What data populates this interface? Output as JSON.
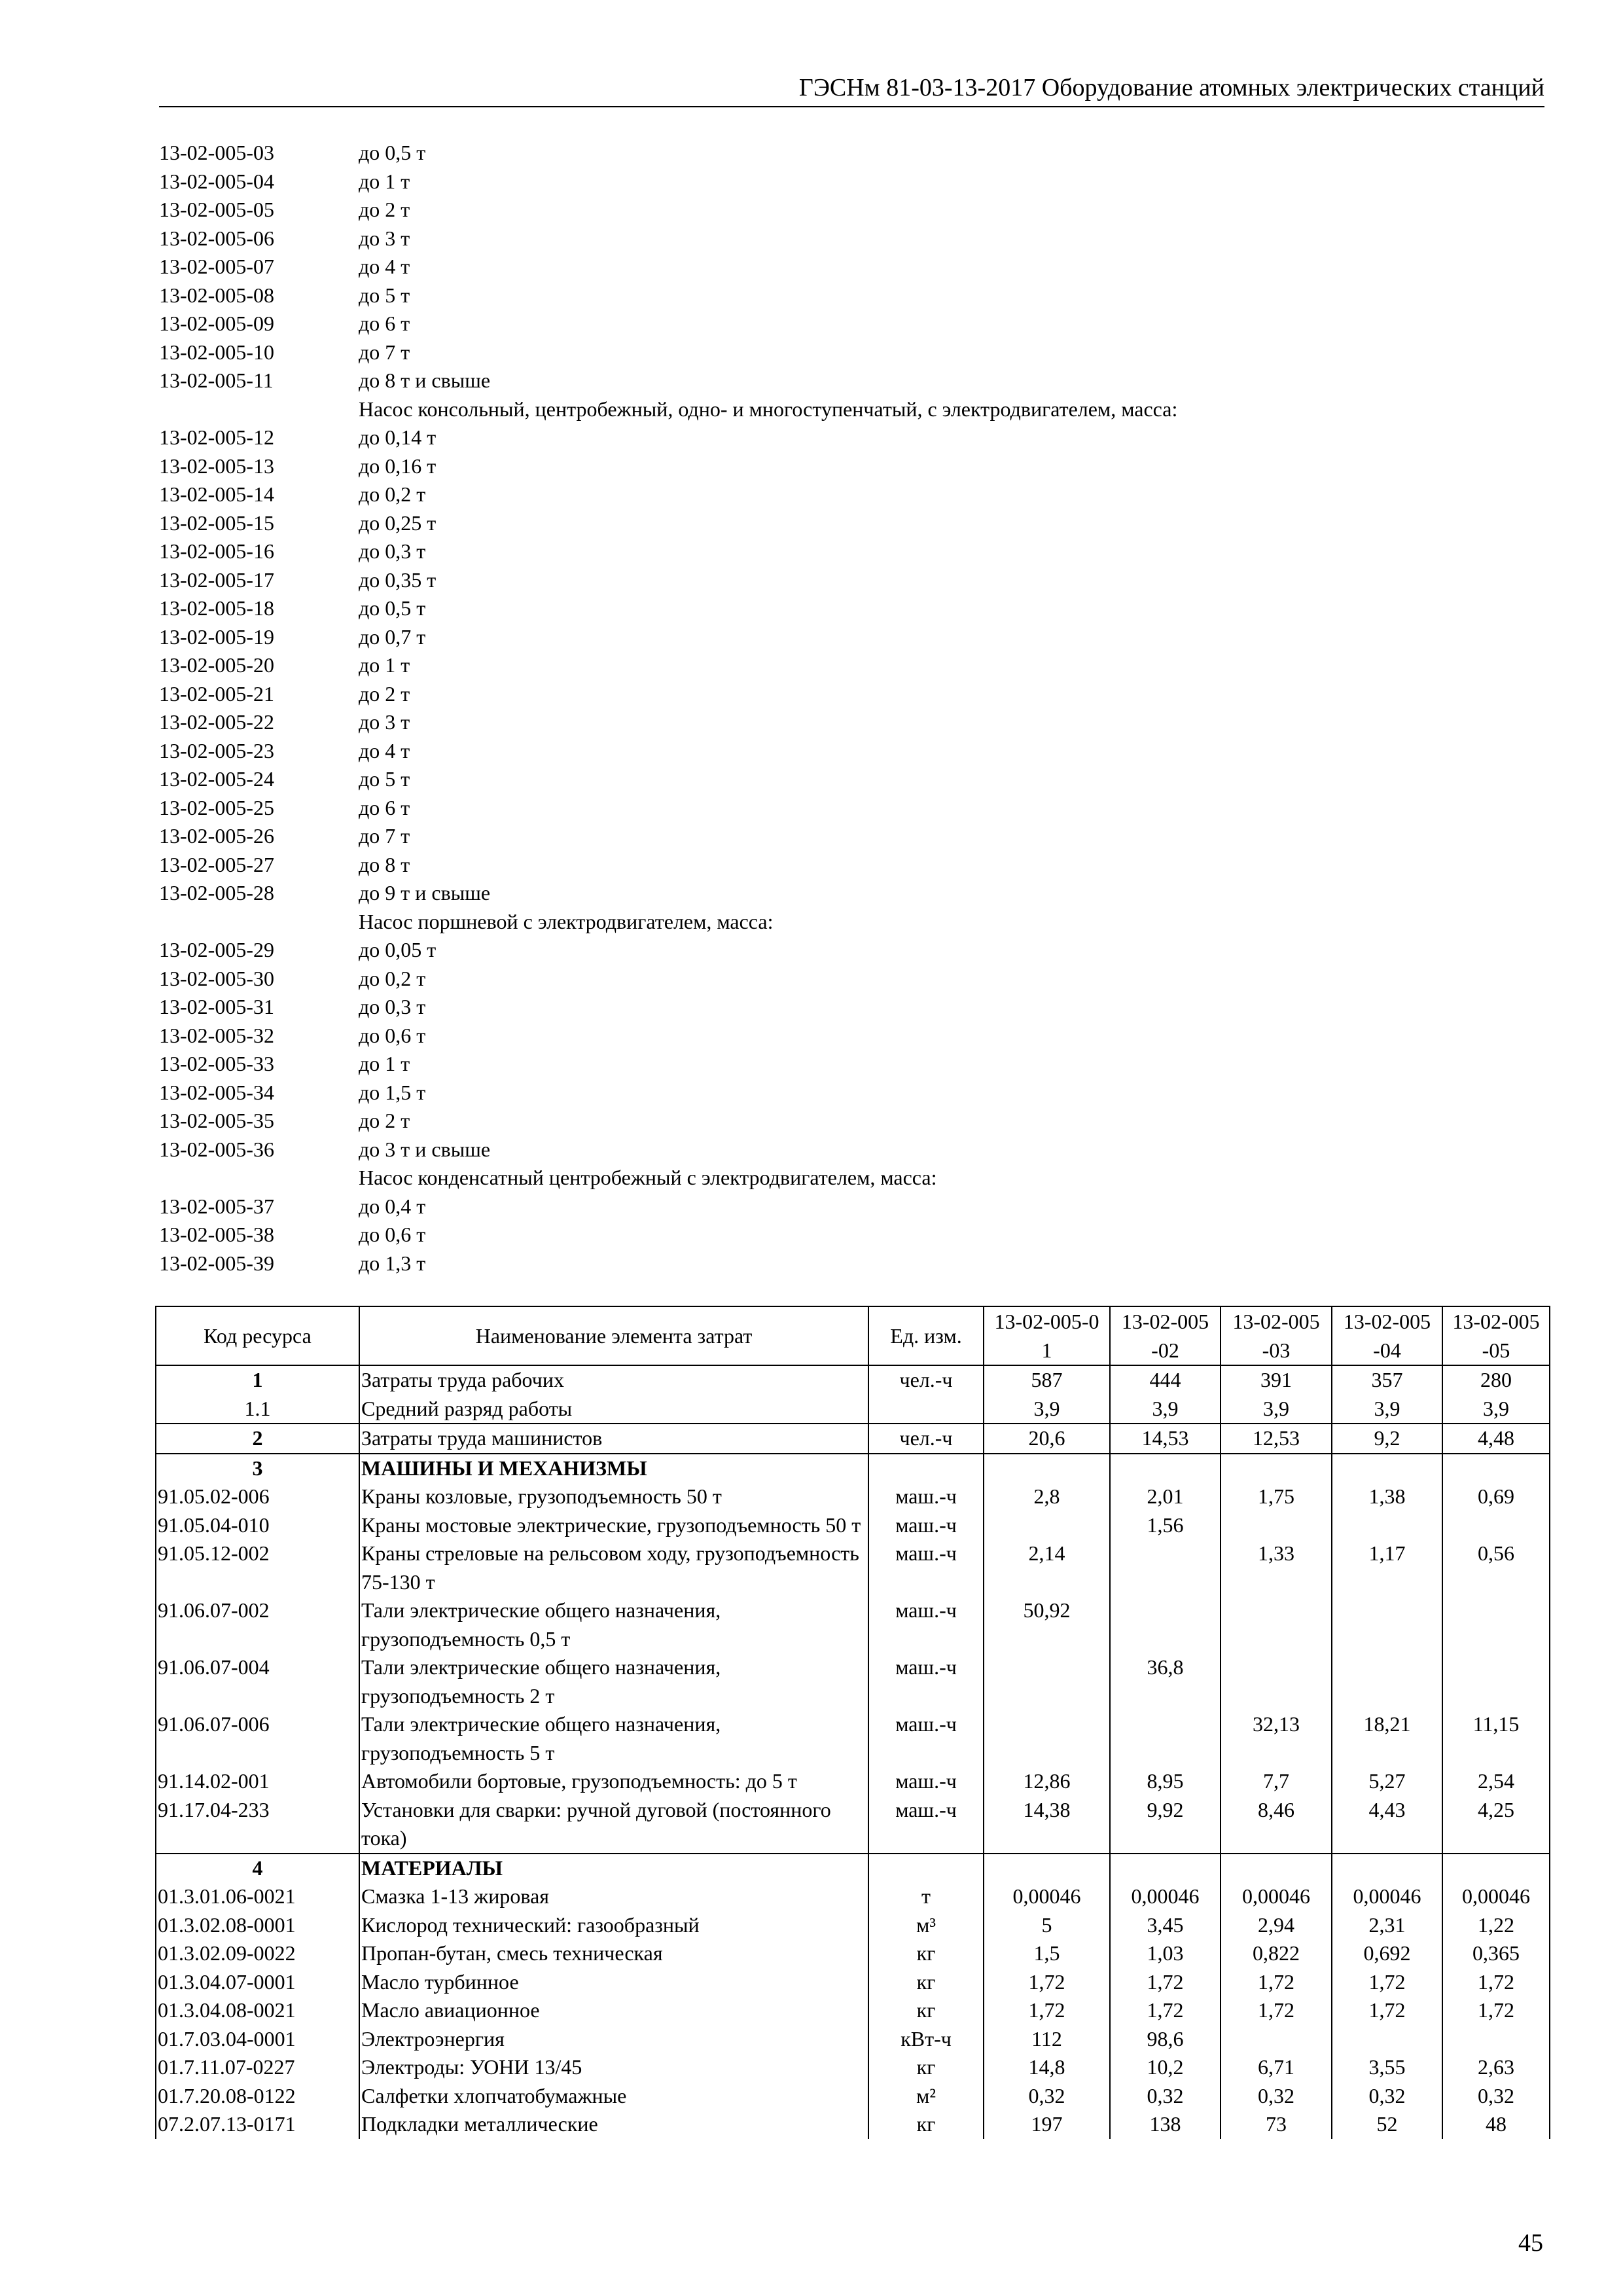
{
  "header": {
    "title": "ГЭСНм 81-03-13-2017 Оборудование атомных электрических станций"
  },
  "list": [
    {
      "code": "13-02-005-03",
      "text": "до 0,5 т"
    },
    {
      "code": "13-02-005-04",
      "text": "до 1 т"
    },
    {
      "code": "13-02-005-05",
      "text": "до 2 т"
    },
    {
      "code": "13-02-005-06",
      "text": "до 3 т"
    },
    {
      "code": "13-02-005-07",
      "text": "до 4 т"
    },
    {
      "code": "13-02-005-08",
      "text": "до 5 т"
    },
    {
      "code": "13-02-005-09",
      "text": "до 6 т"
    },
    {
      "code": "13-02-005-10",
      "text": "до 7 т"
    },
    {
      "code": "13-02-005-11",
      "text": "до 8 т и свыше"
    },
    {
      "code": "",
      "text": "Насос консольный, центробежный, одно- и многоступенчатый, с электродвигателем, масса:"
    },
    {
      "code": "13-02-005-12",
      "text": "до 0,14 т"
    },
    {
      "code": "13-02-005-13",
      "text": "до 0,16 т"
    },
    {
      "code": "13-02-005-14",
      "text": "до 0,2 т"
    },
    {
      "code": "13-02-005-15",
      "text": "до 0,25 т"
    },
    {
      "code": "13-02-005-16",
      "text": "до 0,3 т"
    },
    {
      "code": "13-02-005-17",
      "text": "до 0,35 т"
    },
    {
      "code": "13-02-005-18",
      "text": "до 0,5 т"
    },
    {
      "code": "13-02-005-19",
      "text": "до 0,7 т"
    },
    {
      "code": "13-02-005-20",
      "text": "до 1 т"
    },
    {
      "code": "13-02-005-21",
      "text": "до 2 т"
    },
    {
      "code": "13-02-005-22",
      "text": "до 3 т"
    },
    {
      "code": "13-02-005-23",
      "text": "до 4 т"
    },
    {
      "code": "13-02-005-24",
      "text": "до 5 т"
    },
    {
      "code": "13-02-005-25",
      "text": "до 6 т"
    },
    {
      "code": "13-02-005-26",
      "text": "до 7 т"
    },
    {
      "code": "13-02-005-27",
      "text": "до 8 т"
    },
    {
      "code": "13-02-005-28",
      "text": "до 9 т и свыше"
    },
    {
      "code": "",
      "text": "Насос поршневой с электродвигателем, масса:"
    },
    {
      "code": "13-02-005-29",
      "text": "до 0,05 т"
    },
    {
      "code": "13-02-005-30",
      "text": "до 0,2 т"
    },
    {
      "code": "13-02-005-31",
      "text": "до 0,3 т"
    },
    {
      "code": "13-02-005-32",
      "text": "до 0,6 т"
    },
    {
      "code": "13-02-005-33",
      "text": "до 1 т"
    },
    {
      "code": "13-02-005-34",
      "text": "до 1,5 т"
    },
    {
      "code": "13-02-005-35",
      "text": "до 2 т"
    },
    {
      "code": "13-02-005-36",
      "text": "до 3 т и свыше"
    },
    {
      "code": "",
      "text": "Насос конденсатный центробежный с электродвигателем, масса:"
    },
    {
      "code": "13-02-005-37",
      "text": "до 0,4 т"
    },
    {
      "code": "13-02-005-38",
      "text": "до 0,6 т"
    },
    {
      "code": "13-02-005-39",
      "text": "до 1,3 т"
    }
  ],
  "table": {
    "headers": [
      "Код ресурса",
      "Наименование элемента затрат",
      "Ед. изм.",
      "13-02-005-01",
      "13-02-005-02",
      "13-02-005-03",
      "13-02-005-04",
      "13-02-005-05"
    ],
    "groups": [
      [
        {
          "code": "1",
          "name": "Затраты труда рабочих",
          "unit": "чел.-ч",
          "v": [
            "587",
            "444",
            "391",
            "357",
            "280"
          ],
          "center": true,
          "boldCode": true
        },
        {
          "code": "1.1",
          "name": "Средний разряд работы",
          "unit": "",
          "v": [
            "3,9",
            "3,9",
            "3,9",
            "3,9",
            "3,9"
          ],
          "center": true
        }
      ],
      [
        {
          "code": "2",
          "name": "Затраты труда машинистов",
          "unit": "чел.-ч",
          "v": [
            "20,6",
            "14,53",
            "12,53",
            "9,2",
            "4,48"
          ],
          "center": true,
          "boldCode": true
        }
      ],
      [
        {
          "code": "3",
          "name": "МАШИНЫ И МЕХАНИЗМЫ",
          "unit": "",
          "v": [
            "",
            "",
            "",
            "",
            ""
          ],
          "center": true,
          "boldCode": true,
          "boldName": true
        },
        {
          "code": "91.05.02-006",
          "name": "Краны козловые, грузоподъемность 50 т",
          "unit": "маш.-ч",
          "v": [
            "2,8",
            "2,01",
            "1,75",
            "1,38",
            "0,69"
          ]
        },
        {
          "code": "91.05.04-010",
          "name": "Краны мостовые электрические, грузоподъемность 50 т",
          "unit": "маш.-ч",
          "v": [
            "",
            "1,56",
            "",
            "",
            ""
          ]
        },
        {
          "code": "91.05.12-002",
          "name": "Краны стреловые на рельсовом ходу, грузоподъемность 75-130 т",
          "unit": "маш.-ч",
          "v": [
            "2,14",
            "",
            "1,33",
            "1,17",
            "0,56"
          ]
        },
        {
          "code": "91.06.07-002",
          "name": "Тали электрические общего назначения, грузоподъемность 0,5 т",
          "unit": "маш.-ч",
          "v": [
            "50,92",
            "",
            "",
            "",
            ""
          ]
        },
        {
          "code": "91.06.07-004",
          "name": "Тали электрические общего назначения, грузоподъемность 2 т",
          "unit": "маш.-ч",
          "v": [
            "",
            "36,8",
            "",
            "",
            ""
          ]
        },
        {
          "code": "91.06.07-006",
          "name": "Тали электрические общего назначения, грузоподъемность 5 т",
          "unit": "маш.-ч",
          "v": [
            "",
            "",
            "32,13",
            "18,21",
            "11,15"
          ]
        },
        {
          "code": "91.14.02-001",
          "name": "Автомобили бортовые, грузоподъемность: до 5 т",
          "unit": "маш.-ч",
          "v": [
            "12,86",
            "8,95",
            "7,7",
            "5,27",
            "2,54"
          ]
        },
        {
          "code": "91.17.04-233",
          "name": "Установки для сварки: ручной дуговой (постоянного тока)",
          "unit": "маш.-ч",
          "v": [
            "14,38",
            "9,92",
            "8,46",
            "4,43",
            "4,25"
          ]
        }
      ],
      [
        {
          "code": "4",
          "name": "МАТЕРИАЛЫ",
          "unit": "",
          "v": [
            "",
            "",
            "",
            "",
            ""
          ],
          "center": true,
          "boldCode": true,
          "boldName": true
        },
        {
          "code": "01.3.01.06-0021",
          "name": "Смазка 1-13 жировая",
          "unit": "т",
          "v": [
            "0,00046",
            "0,00046",
            "0,00046",
            "0,00046",
            "0,00046"
          ]
        },
        {
          "code": "01.3.02.08-0001",
          "name": "Кислород технический: газообразный",
          "unit": "м³",
          "v": [
            "5",
            "3,45",
            "2,94",
            "2,31",
            "1,22"
          ]
        },
        {
          "code": "01.3.02.09-0022",
          "name": "Пропан-бутан, смесь техническая",
          "unit": "кг",
          "v": [
            "1,5",
            "1,03",
            "0,822",
            "0,692",
            "0,365"
          ]
        },
        {
          "code": "01.3.04.07-0001",
          "name": "Масло турбинное",
          "unit": "кг",
          "v": [
            "1,72",
            "1,72",
            "1,72",
            "1,72",
            "1,72"
          ]
        },
        {
          "code": "01.3.04.08-0021",
          "name": "Масло авиационное",
          "unit": "кг",
          "v": [
            "1,72",
            "1,72",
            "1,72",
            "1,72",
            "1,72"
          ]
        },
        {
          "code": "01.7.03.04-0001",
          "name": "Электроэнергия",
          "unit": "кВт-ч",
          "v": [
            "112",
            "98,6",
            "",
            "",
            ""
          ]
        },
        {
          "code": "01.7.11.07-0227",
          "name": "Электроды: УОНИ 13/45",
          "unit": "кг",
          "v": [
            "14,8",
            "10,2",
            "6,71",
            "3,55",
            "2,63"
          ]
        },
        {
          "code": "01.7.20.08-0122",
          "name": "Салфетки хлопчатобумажные",
          "unit": "м²",
          "v": [
            "0,32",
            "0,32",
            "0,32",
            "0,32",
            "0,32"
          ]
        },
        {
          "code": "07.2.07.13-0171",
          "name": "Подкладки металлические",
          "unit": "кг",
          "v": [
            "197",
            "138",
            "73",
            "52",
            "48"
          ]
        }
      ]
    ]
  },
  "page_number": "45"
}
